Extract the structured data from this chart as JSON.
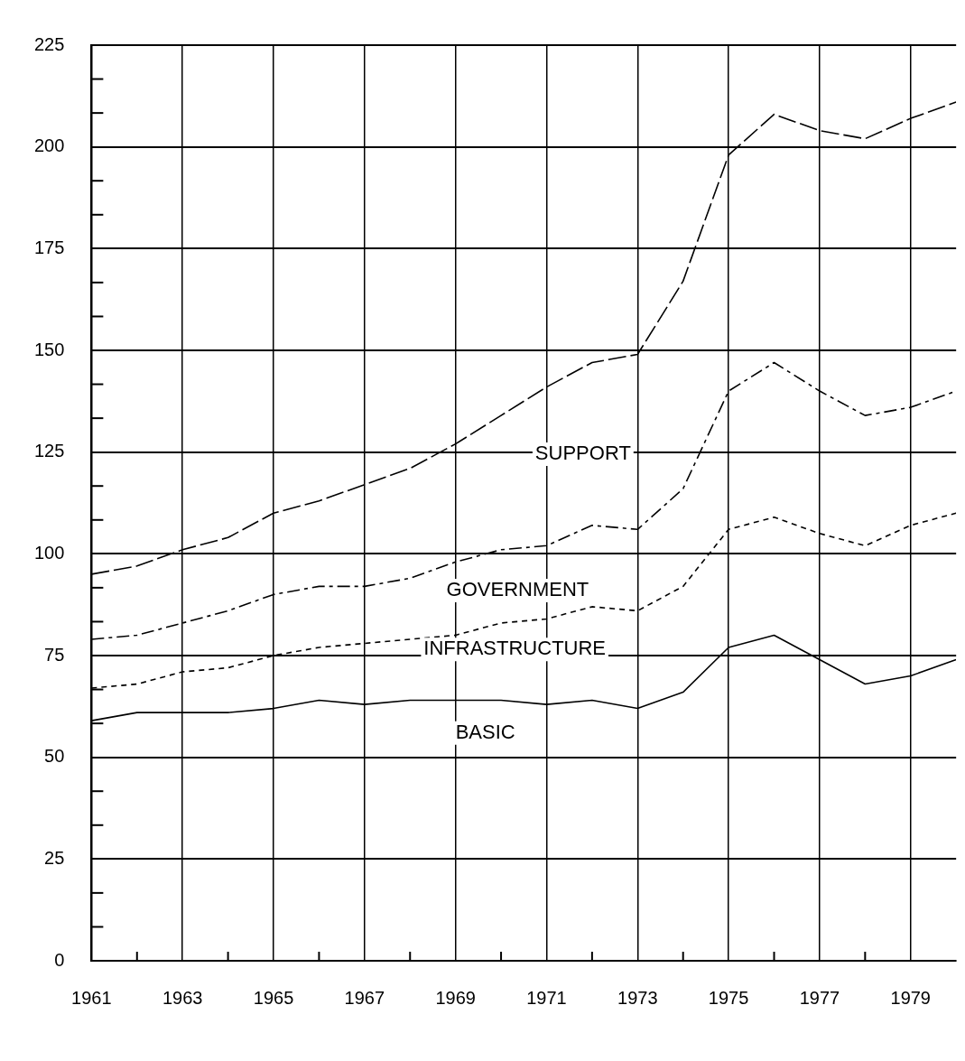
{
  "chart_data": {
    "type": "line",
    "x": [
      1961,
      1962,
      1963,
      1964,
      1965,
      1966,
      1967,
      1968,
      1969,
      1970,
      1971,
      1972,
      1973,
      1974,
      1975,
      1976,
      1977,
      1978,
      1979,
      1980
    ],
    "series": [
      {
        "name": "SUPPORT",
        "color": "#000000",
        "line_style": "dashed",
        "values": [
          95,
          97,
          101,
          104,
          110,
          113,
          117,
          121,
          127,
          134,
          141,
          147,
          149,
          167,
          198,
          208,
          204,
          202,
          207,
          211
        ]
      },
      {
        "name": "GOVERNMENT",
        "color": "#000000",
        "line_style": "dashed",
        "values": [
          79,
          80,
          83,
          86,
          90,
          92,
          92,
          94,
          98,
          101,
          102,
          107,
          106,
          116,
          140,
          147,
          140,
          134,
          136,
          140
        ]
      },
      {
        "name": "INFRASTRUCTURE",
        "color": "#000000",
        "line_style": "dashed",
        "values": [
          67,
          68,
          71,
          72,
          75,
          77,
          78,
          79,
          80,
          83,
          84,
          87,
          86,
          92,
          106,
          109,
          105,
          102,
          107,
          110
        ]
      },
      {
        "name": "BASIC",
        "color": "#000000",
        "line_style": "solid",
        "values": [
          59,
          61,
          61,
          61,
          62,
          64,
          63,
          64,
          64,
          64,
          63,
          64,
          62,
          66,
          77,
          80,
          74,
          68,
          70,
          74
        ]
      }
    ],
    "xlim": [
      1961,
      1980
    ],
    "xticks": [
      1961,
      {
        "value": 1962,
        "label": null
      },
      1963,
      {
        "value": 1964,
        "label": null
      },
      1965,
      {
        "value": 1966,
        "label": null
      },
      1967,
      {
        "value": 1968,
        "label": null
      },
      1969,
      {
        "value": 1970,
        "label": null
      },
      1971,
      {
        "value": 1972,
        "label": null
      },
      1973,
      {
        "value": 1974,
        "label": null
      },
      1975,
      {
        "value": 1976,
        "label": null
      },
      1977,
      {
        "value": 1978,
        "label": null
      },
      1979
    ],
    "ylim": [
      0,
      225
    ],
    "yticks": [
      0,
      {
        "value": 8.33,
        "label": null
      },
      {
        "value": 16.67,
        "label": null
      },
      25,
      {
        "value": 33.33,
        "label": null
      },
      {
        "value": 41.67,
        "label": null
      },
      50,
      {
        "value": 58.33,
        "label": null
      },
      {
        "value": 66.67,
        "label": null
      },
      75,
      {
        "value": 83.33,
        "label": null
      },
      {
        "value": 91.67,
        "label": null
      },
      100,
      {
        "value": 108.33,
        "label": null
      },
      {
        "value": 116.67,
        "label": null
      },
      125,
      {
        "value": 133.33,
        "label": null
      },
      {
        "value": 141.67,
        "label": null
      },
      150,
      {
        "value": 158.33,
        "label": null
      },
      {
        "value": 166.67,
        "label": null
      },
      175,
      {
        "value": 183.33,
        "label": null
      },
      {
        "value": 191.67,
        "label": null
      },
      200,
      {
        "value": 208.33,
        "label": null
      },
      {
        "value": 216.67,
        "label": null
      },
      225
    ],
    "grid": true,
    "legend": false,
    "marker": "none"
  }
}
